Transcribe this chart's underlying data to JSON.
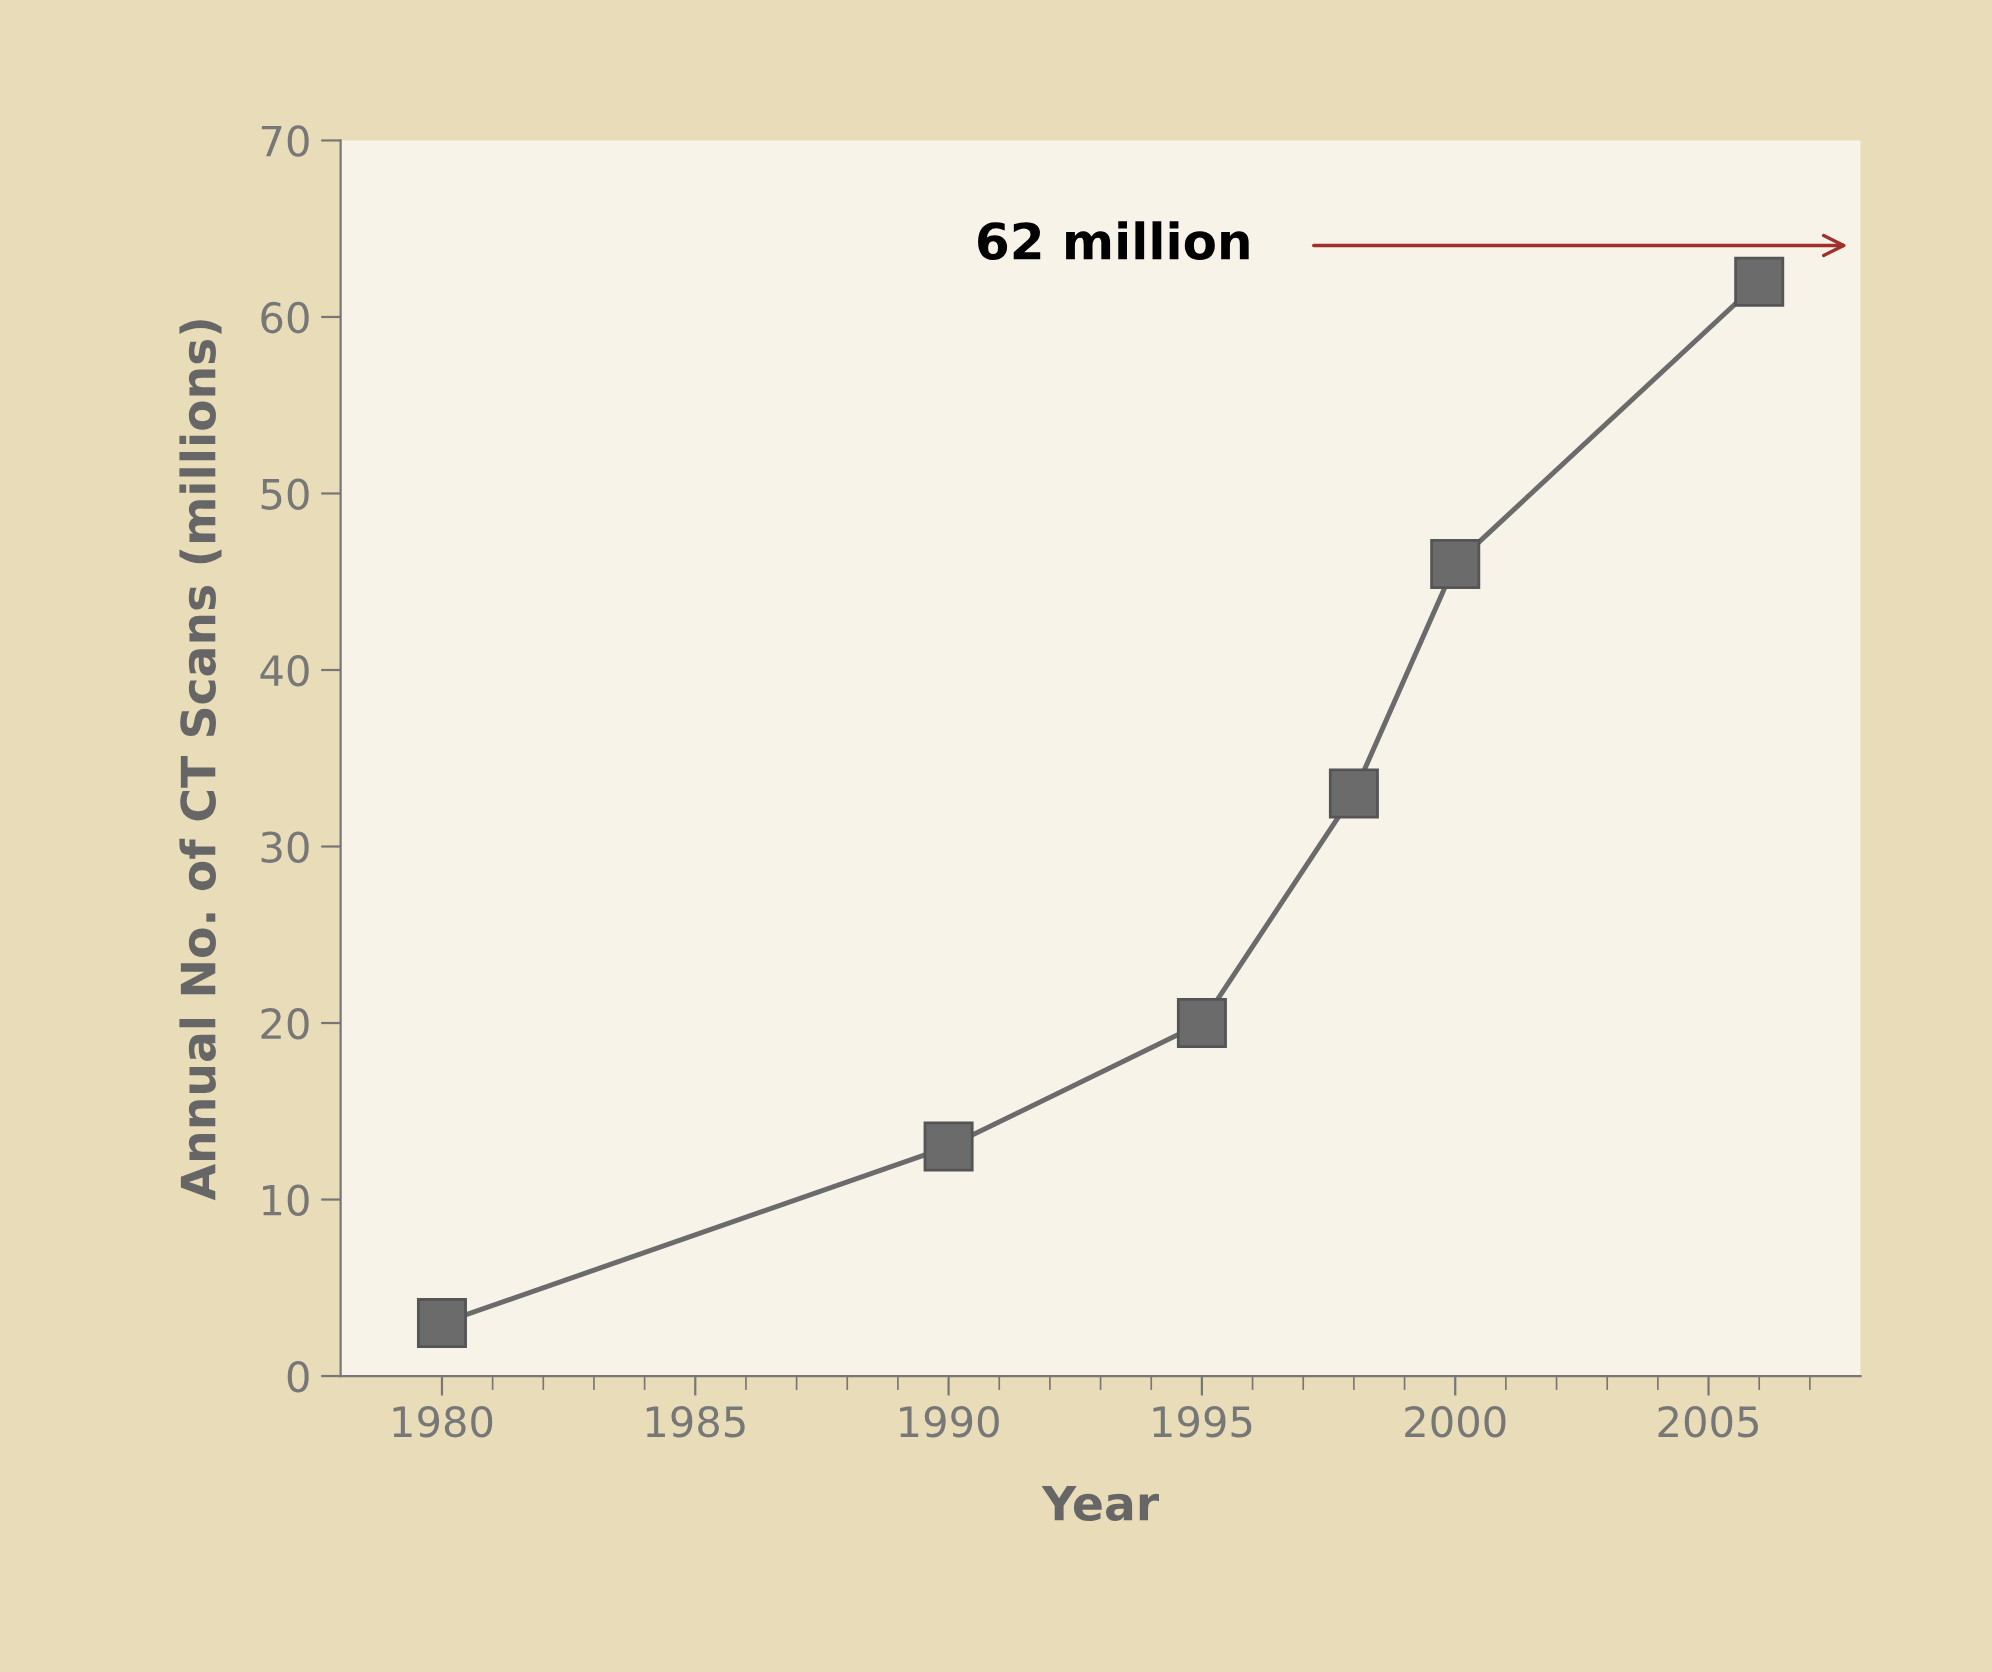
{
  "chart_data": {
    "type": "line",
    "xlabel": "Year",
    "ylabel": "Annual No. of CT Scans (millions)",
    "x": [
      1980,
      1990,
      1995,
      1998,
      2000,
      2006
    ],
    "series": [
      {
        "color": "#6b6b6b",
        "values": [
          3,
          13,
          20,
          33,
          46,
          62
        ]
      }
    ],
    "xlim": [
      1978,
      2008
    ],
    "ylim": [
      0,
      70
    ],
    "xticks": [
      1980,
      {
        "value": 1981,
        "label": null
      },
      {
        "value": 1982,
        "label": null
      },
      {
        "value": 1983,
        "label": null
      },
      {
        "value": 1984,
        "label": null
      },
      1985,
      {
        "value": 1986,
        "label": null
      },
      {
        "value": 1987,
        "label": null
      },
      {
        "value": 1988,
        "label": null
      },
      {
        "value": 1989,
        "label": null
      },
      1990,
      {
        "value": 1991,
        "label": null
      },
      {
        "value": 1992,
        "label": null
      },
      {
        "value": 1993,
        "label": null
      },
      {
        "value": 1994,
        "label": null
      },
      1995,
      {
        "value": 1996,
        "label": null
      },
      {
        "value": 1997,
        "label": null
      },
      {
        "value": 1998,
        "label": null
      },
      {
        "value": 1999,
        "label": null
      },
      2000,
      {
        "value": 2001,
        "label": null
      },
      {
        "value": 2002,
        "label": null
      },
      {
        "value": 2003,
        "label": null
      },
      {
        "value": 2004,
        "label": null
      },
      2005,
      {
        "value": 2006,
        "label": null
      },
      {
        "value": 2007,
        "label": null
      }
    ],
    "yticks": [
      0,
      10,
      20,
      30,
      40,
      50,
      60,
      70
    ],
    "marker": "square",
    "line_style": "solid",
    "grid": false,
    "legend": false,
    "annotations": [
      "62 million"
    ]
  }
}
